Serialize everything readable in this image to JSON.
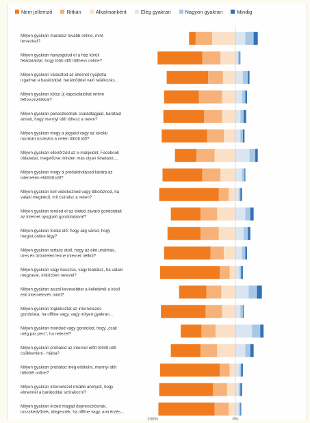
{
  "chart_data": {
    "type": "bar",
    "stacked": true,
    "diverging": true,
    "legend_position": "top",
    "series": [
      {
        "name": "Nem jellemző",
        "color": "#f07c1f"
      },
      {
        "name": "Ritkán",
        "color": "#f7b27a"
      },
      {
        "name": "Alkalmanként",
        "color": "#fbe0c8"
      },
      {
        "name": "Elég gyakran",
        "color": "#d9e6f1"
      },
      {
        "name": "Nagyon gyakran",
        "color": "#a9c7e4"
      },
      {
        "name": "Mindig",
        "color": "#2f71b8"
      }
    ],
    "x_ticks": [
      "100%",
      "0%"
    ],
    "categories": [
      [
        "Milyen gyakran maradsz tovább online, mint",
        "tervezted?"
      ],
      [
        "Milyen gyakran hanyagolod el a ház körüli",
        "feladataidat, hogy több időt tölthess online?"
      ],
      [
        "Milyen gyakran választod az internet nyújtotta",
        "izgalmat a barátoddal, barátnőddel való találkozás..."
      ],
      [
        "Milyen gyakran kötsz új kapcsolatokat online",
        "felhasználókkal?"
      ],
      [
        "Milyen gyakran panaszkodnak családtagjaid, barátaid",
        "amiatt, hogy mennyi időt töltesz a neten?"
      ],
      [
        "Milyen gyakran megy a jegyeid vagy az iskolai",
        "munkád rovására a neten töltött idő?"
      ],
      [
        "Milyen gyakran ellenőrzöd az e-mailjeidet, Facebook",
        "oldaladat, megelőzve minden más olyan feladatot,..."
      ],
      [
        "Milyen gyakran megy a produktivitásod kárára az",
        "interneten eltöltött idő?"
      ],
      [
        "Milyen gyakran kell védekezned vagy titkolóznod, ha",
        "valaki megkérdi, mit csinálsz a neten?"
      ],
      [
        "Milyen gyakran tereled el az életed zavaró gondolatait",
        "az internet nyugtató gondolataival?"
      ],
      [
        "Milyen gyakran fordul elő, hogy alig várod, hogy",
        "megint online légy?"
      ],
      [
        "Milyen gyakran tartasz attól, hogy az élet unalmas,",
        "üres és örömtelen lenne internet nélkül?"
      ],
      [
        "Milyen gyakran vagy bosszús, vagy kiabálsz, ha valaki",
        "megzavar, miközben netezel?"
      ],
      [
        "Milyen gyakran alszol kevesebbet a kelleténél a késő",
        "esti internetezés miatt?"
      ],
      [
        "Milyen gyakran foglalkoztat az internetezés",
        "gondolata, ha offline vagy, vagy milyen gyakran..."
      ],
      [
        "Milyen gyakran mondod vagy gondolod, hogy „csak",
        "még pár percˮ, ha netezel?"
      ],
      [
        "Milyen gyakran próbálod az internet előtt töltött időt",
        "csökkenteni - hiába?"
      ],
      [
        "Milyen gyakran próbálod meg eltitkolni, mennyi időt",
        "töltöttél online?"
      ],
      [
        "Milyen gyakran internetezel inkább ahelyett, hogy",
        "elmennél a barátoddal szórakozni?"
      ],
      [
        "Milyen gyakran érzed magad depressziósnak,",
        "rosszkedvűnek, idegesnek, ha offline vagy, ami érzés..."
      ]
    ],
    "values": [
      [
        8,
        20,
        28,
        12,
        10,
        5
      ],
      [
        54,
        22,
        18,
        3,
        2,
        1
      ],
      [
        50,
        18,
        15,
        9,
        6,
        2
      ],
      [
        42,
        28,
        16,
        8,
        4,
        2
      ],
      [
        49,
        22,
        16,
        6,
        4,
        3
      ],
      [
        55,
        20,
        14,
        6,
        3,
        2
      ],
      [
        26,
        22,
        25,
        17,
        7,
        3
      ],
      [
        48,
        22,
        18,
        8,
        3,
        1
      ],
      [
        72,
        12,
        8,
        4,
        2,
        2
      ],
      [
        36,
        20,
        22,
        12,
        6,
        4
      ],
      [
        40,
        22,
        20,
        10,
        5,
        3
      ],
      [
        56,
        16,
        14,
        8,
        4,
        2
      ],
      [
        72,
        12,
        7,
        5,
        2,
        2
      ],
      [
        33,
        18,
        17,
        16,
        10,
        6
      ],
      [
        54,
        20,
        16,
        6,
        3,
        1
      ],
      [
        25,
        17,
        24,
        20,
        10,
        4
      ],
      [
        36,
        20,
        22,
        12,
        6,
        4
      ],
      [
        72,
        12,
        7,
        5,
        2,
        2
      ],
      [
        65,
        17,
        10,
        4,
        2,
        2
      ],
      [
        68,
        17,
        8,
        4,
        2,
        1
      ]
    ],
    "xlim": [
      -100,
      100
    ]
  }
}
